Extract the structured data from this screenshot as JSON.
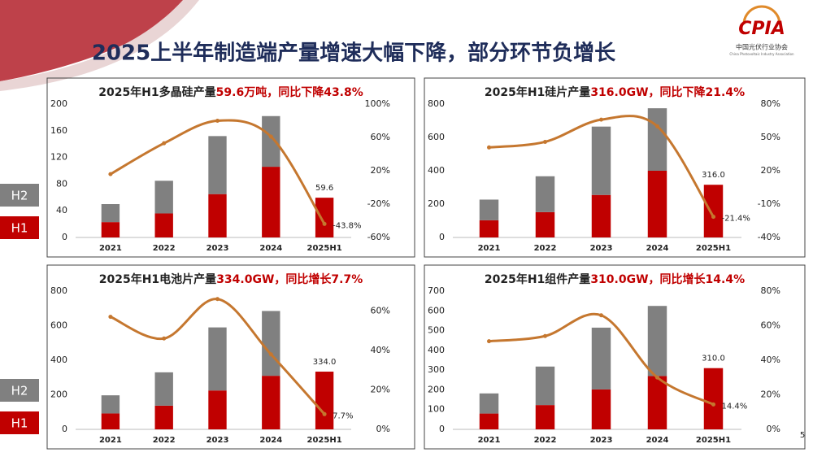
{
  "title": "2025上半年制造端产量增速大幅下降，部分环节负增长",
  "logo": {
    "name": "CPIA",
    "cn": "中国光伏行业协会",
    "en": "China Photovoltaic Industry Association"
  },
  "page_number": "5",
  "chart_data": [
    {
      "type": "bar",
      "stacked": true,
      "title": "2025年H1多晶硅产量",
      "title_highlight": "59.6万吨，同比下降43.8%",
      "categories": [
        "2021",
        "2022",
        "2023",
        "2024",
        "2025H1"
      ],
      "series": [
        {
          "name": "H1",
          "color": "#c00000",
          "values": [
            23,
            36,
            65,
            106,
            59.6
          ],
          "value_labels": [
            null,
            null,
            null,
            null,
            "59.6"
          ]
        },
        {
          "name": "H2",
          "color": "#808080",
          "values": [
            27,
            49,
            87,
            76,
            null
          ]
        },
        {
          "type": "line",
          "axis": "y2",
          "color": "#c5772f",
          "values": [
            16,
            53,
            80,
            61,
            -43.8
          ],
          "value_labels": [
            null,
            null,
            null,
            null,
            "-43.8%"
          ]
        }
      ],
      "ylim": [
        0,
        200
      ],
      "yticks": [
        0,
        40,
        80,
        120,
        160,
        200
      ],
      "y2lim": [
        -60,
        100
      ],
      "y2ticks": [
        {
          "value": -60,
          "label": "-60%"
        },
        {
          "value": -20,
          "label": "-20%"
        },
        {
          "value": 20,
          "label": "20%"
        },
        {
          "value": 60,
          "label": "60%"
        },
        {
          "value": 100,
          "label": "100%"
        }
      ]
    },
    {
      "type": "bar",
      "stacked": true,
      "title": "2025年H1硅片产量",
      "title_highlight": "316.0GW，同比下降21.4%",
      "categories": [
        "2021",
        "2022",
        "2023",
        "2024",
        "2025H1"
      ],
      "series": [
        {
          "name": "H1",
          "color": "#c00000",
          "values": [
            103,
            152,
            255,
            400,
            316
          ],
          "value_labels": [
            null,
            null,
            null,
            null,
            "316.0"
          ]
        },
        {
          "name": "H2",
          "color": "#808080",
          "values": [
            124,
            215,
            410,
            375,
            null
          ]
        },
        {
          "type": "line",
          "axis": "y2",
          "color": "#c5772f",
          "values": [
            41,
            46,
            66,
            60,
            -21.4
          ],
          "value_labels": [
            null,
            null,
            null,
            null,
            "-21.4%"
          ]
        }
      ],
      "ylim": [
        0,
        800
      ],
      "yticks": [
        0,
        200,
        400,
        600,
        800
      ],
      "y2lim": [
        -40,
        80
      ],
      "y2ticks": [
        {
          "value": -40,
          "label": "-40%"
        },
        {
          "value": -10,
          "label": "-10%"
        },
        {
          "value": 20,
          "label": "20%"
        },
        {
          "value": 50,
          "label": "50%"
        },
        {
          "value": 80,
          "label": "80%"
        }
      ]
    },
    {
      "type": "bar",
      "stacked": true,
      "title": "2025年H1电池片产量",
      "title_highlight": "334.0GW，同比增长7.7%",
      "categories": [
        "2021",
        "2022",
        "2023",
        "2024",
        "2025H1"
      ],
      "series": [
        {
          "name": "H1",
          "color": "#c00000",
          "values": [
            92,
            137,
            225,
            310,
            334
          ],
          "value_labels": [
            null,
            null,
            null,
            null,
            "334.0"
          ]
        },
        {
          "name": "H2",
          "color": "#808080",
          "values": [
            105,
            193,
            365,
            375,
            null
          ]
        },
        {
          "type": "line",
          "axis": "y2",
          "color": "#c5772f",
          "values": [
            57,
            46,
            66,
            38,
            7.7
          ],
          "value_labels": [
            null,
            null,
            null,
            null,
            "7.7%"
          ]
        }
      ],
      "ylim": [
        0,
        800
      ],
      "yticks": [
        0,
        200,
        400,
        600,
        800
      ],
      "y2lim": [
        0,
        70
      ],
      "y2ticks": [
        {
          "value": 0,
          "label": "0%"
        },
        {
          "value": 20,
          "label": "20%"
        },
        {
          "value": 40,
          "label": "40%"
        },
        {
          "value": 60,
          "label": "60%"
        }
      ]
    },
    {
      "type": "bar",
      "stacked": true,
      "title": "2025年H1组件产量",
      "title_highlight": "310.0GW，同比增长14.4%",
      "categories": [
        "2021",
        "2022",
        "2023",
        "2024",
        "2025H1"
      ],
      "series": [
        {
          "name": "H1",
          "color": "#c00000",
          "values": [
            80,
            123,
            202,
            270,
            310
          ],
          "value_labels": [
            null,
            null,
            null,
            null,
            "310.0"
          ]
        },
        {
          "name": "H2",
          "color": "#808080",
          "values": [
            102,
            195,
            313,
            355,
            null
          ]
        },
        {
          "type": "line",
          "axis": "y2",
          "color": "#c5772f",
          "values": [
            51,
            54,
            66,
            30,
            14.4
          ],
          "value_labels": [
            null,
            null,
            null,
            null,
            "14.4%"
          ]
        }
      ],
      "ylim": [
        0,
        700
      ],
      "yticks": [
        0,
        100,
        200,
        300,
        400,
        500,
        600,
        700
      ],
      "y2lim": [
        0,
        80
      ],
      "y2ticks": [
        {
          "value": 0,
          "label": "0%"
        },
        {
          "value": 20,
          "label": "20%"
        },
        {
          "value": 40,
          "label": "40%"
        },
        {
          "value": 60,
          "label": "60%"
        },
        {
          "value": 80,
          "label": "80%"
        }
      ]
    }
  ]
}
